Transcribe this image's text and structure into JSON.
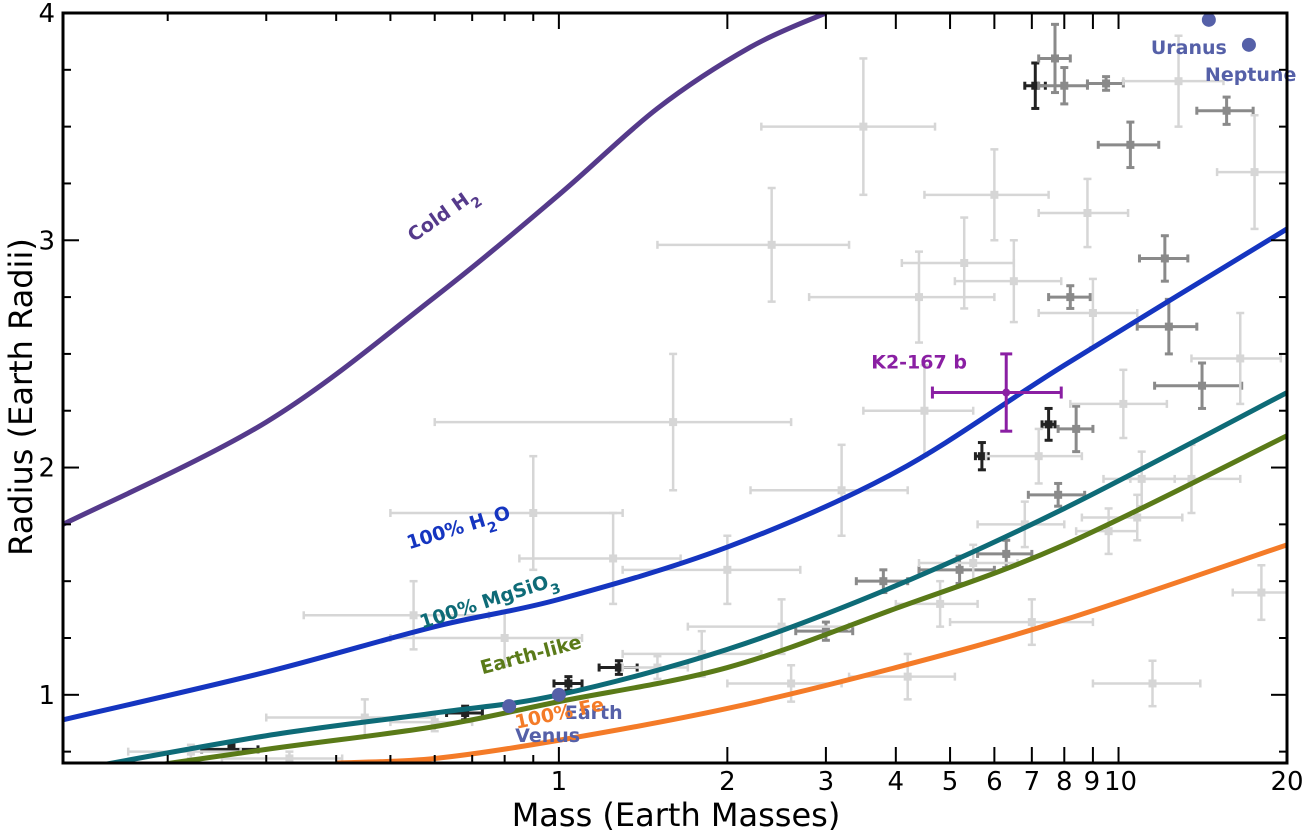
{
  "chart_data": {
    "type": "scatter",
    "title": "",
    "xlabel": "Mass (Earth Masses)",
    "ylabel": "Radius (Earth Radii)",
    "xscale": "log",
    "xlim": [
      0.13,
      20
    ],
    "ylim": [
      0.7,
      4
    ],
    "x_ticks": [
      {
        "value": 1,
        "label": "1"
      },
      {
        "value": 2,
        "label": "2"
      },
      {
        "value": 3,
        "label": "3"
      },
      {
        "value": 4,
        "label": "4"
      },
      {
        "value": 5,
        "label": "5"
      },
      {
        "value": 6,
        "label": "6"
      },
      {
        "value": 7,
        "label": "7"
      },
      {
        "value": 8,
        "label": "8"
      },
      {
        "value": 9,
        "label": "9"
      },
      {
        "value": 10,
        "label": "10"
      },
      {
        "value": 20,
        "label": "20"
      }
    ],
    "y_ticks": [
      {
        "value": 1,
        "label": "1"
      },
      {
        "value": 2,
        "label": "2"
      },
      {
        "value": 3,
        "label": "3"
      },
      {
        "value": 4,
        "label": "4"
      }
    ],
    "grid": false,
    "composition_curves": [
      {
        "label": "Cold H",
        "sub": "2",
        "color": "#553a8b",
        "points": [
          [
            0.13,
            1.75
          ],
          [
            0.3,
            2.2
          ],
          [
            0.6,
            2.75
          ],
          [
            1.0,
            3.2
          ],
          [
            1.5,
            3.58
          ],
          [
            2.2,
            3.85
          ],
          [
            3.0,
            4.0
          ]
        ]
      },
      {
        "label": "100% H",
        "sub": "2",
        "suffix": "O",
        "color": "#1535c0",
        "points": [
          [
            0.13,
            0.89
          ],
          [
            0.3,
            1.1
          ],
          [
            0.6,
            1.3
          ],
          [
            1.0,
            1.42
          ],
          [
            2.0,
            1.65
          ],
          [
            4.0,
            1.98
          ],
          [
            8.0,
            2.45
          ],
          [
            20,
            3.05
          ]
        ]
      },
      {
        "label": "100% MgSiO",
        "sub": "3",
        "suffix": "",
        "color": "#0e6b77",
        "points": [
          [
            0.13,
            0.66
          ],
          [
            0.3,
            0.82
          ],
          [
            0.6,
            0.92
          ],
          [
            1.0,
            1.0
          ],
          [
            2.0,
            1.2
          ],
          [
            4.0,
            1.48
          ],
          [
            8.0,
            1.82
          ],
          [
            20,
            2.33
          ]
        ]
      },
      {
        "label": "Earth-like",
        "color": "#5a7a18",
        "points": [
          [
            0.13,
            0.63
          ],
          [
            0.3,
            0.76
          ],
          [
            0.6,
            0.86
          ],
          [
            1.0,
            0.97
          ],
          [
            2.0,
            1.12
          ],
          [
            4.0,
            1.38
          ],
          [
            8.0,
            1.66
          ],
          [
            20,
            2.14
          ]
        ]
      },
      {
        "label": "100% Fe",
        "color": "#f47b28",
        "points": [
          [
            0.4,
            0.7
          ],
          [
            0.6,
            0.72
          ],
          [
            1.0,
            0.8
          ],
          [
            2.0,
            0.94
          ],
          [
            4.0,
            1.12
          ],
          [
            8.0,
            1.33
          ],
          [
            20,
            1.66
          ]
        ]
      }
    ],
    "solar_system": [
      {
        "name": "Venus",
        "mass": 0.815,
        "radius": 0.95
      },
      {
        "name": "Earth",
        "mass": 1.0,
        "radius": 1.0
      },
      {
        "name": "Uranus",
        "mass": 14.5,
        "radius": 3.97
      },
      {
        "name": "Neptune",
        "mass": 17.1,
        "radius": 3.86
      }
    ],
    "highlight": {
      "name": "K2-167 b",
      "mass": 6.3,
      "mass_err": [
        1.65,
        1.6
      ],
      "radius": 2.33,
      "radius_err": [
        0.17,
        0.17
      ],
      "color": "#8a1fa3"
    },
    "known_planets": [
      {
        "mass": 7.1,
        "merr": 0.3,
        "radius": 3.68,
        "rerr": 0.1,
        "shade": "dark"
      },
      {
        "mass": 5.7,
        "merr": 0.15,
        "radius": 2.05,
        "rerr": 0.06,
        "shade": "dark"
      },
      {
        "mass": 7.5,
        "merr": 0.2,
        "radius": 2.19,
        "rerr": 0.07,
        "shade": "dark"
      },
      {
        "mass": 1.28,
        "merr": 0.1,
        "radius": 1.12,
        "rerr": 0.03,
        "shade": "dark"
      },
      {
        "mass": 1.04,
        "merr": 0.06,
        "radius": 1.05,
        "rerr": 0.03,
        "shade": "dark"
      },
      {
        "mass": 0.68,
        "merr": 0.05,
        "radius": 0.92,
        "rerr": 0.03,
        "shade": "dark"
      },
      {
        "mass": 0.26,
        "merr": 0.03,
        "radius": 0.76,
        "rerr": 0.02,
        "shade": "dark"
      },
      {
        "mass": 8.2,
        "merr": 0.7,
        "radius": 2.75,
        "rerr": 0.05,
        "shade": "mid"
      },
      {
        "mass": 8.0,
        "merr": 0.8,
        "radius": 3.68,
        "rerr": 0.08,
        "shade": "mid"
      },
      {
        "mass": 7.7,
        "merr": 0.5,
        "radius": 3.8,
        "rerr": 0.15,
        "shade": "mid"
      },
      {
        "mass": 9.5,
        "merr": 0.7,
        "radius": 3.69,
        "rerr": 0.03,
        "shade": "mid"
      },
      {
        "mass": 10.5,
        "merr": 1.3,
        "radius": 3.42,
        "rerr": 0.1,
        "shade": "mid"
      },
      {
        "mass": 12.1,
        "merr": 1.2,
        "radius": 2.92,
        "rerr": 0.1,
        "shade": "mid"
      },
      {
        "mass": 12.3,
        "merr": 1.5,
        "radius": 2.62,
        "rerr": 0.12,
        "shade": "mid"
      },
      {
        "mass": 15.6,
        "merr": 1.8,
        "radius": 3.57,
        "rerr": 0.06,
        "shade": "mid"
      },
      {
        "mass": 7.8,
        "merr": 0.9,
        "radius": 1.88,
        "rerr": 0.05,
        "shade": "mid"
      },
      {
        "mass": 3.8,
        "merr": 0.4,
        "radius": 1.5,
        "rerr": 0.05,
        "shade": "mid"
      },
      {
        "mass": 5.2,
        "merr": 0.8,
        "radius": 1.55,
        "rerr": 0.06,
        "shade": "mid"
      },
      {
        "mass": 6.3,
        "merr": 0.7,
        "radius": 1.62,
        "rerr": 0.06,
        "shade": "mid"
      },
      {
        "mass": 3.0,
        "merr": 0.35,
        "radius": 1.28,
        "rerr": 0.04,
        "shade": "mid"
      },
      {
        "mass": 8.4,
        "merr": 0.6,
        "radius": 2.17,
        "rerr": 0.1,
        "shade": "mid"
      },
      {
        "mass": 14.1,
        "merr": 2.5,
        "radius": 2.36,
        "rerr": 0.1,
        "shade": "mid"
      },
      {
        "mass": 5.3,
        "merr": 1.2,
        "radius": 2.9,
        "rerr": 0.2,
        "shade": "light"
      },
      {
        "mass": 6.5,
        "merr": 1.4,
        "radius": 2.82,
        "rerr": 0.18,
        "shade": "light"
      },
      {
        "mass": 4.4,
        "merr": 1.6,
        "radius": 2.75,
        "rerr": 0.2,
        "shade": "light"
      },
      {
        "mass": 3.5,
        "merr": 1.2,
        "radius": 3.5,
        "rerr": 0.3,
        "shade": "light"
      },
      {
        "mass": 2.4,
        "merr": 0.9,
        "radius": 2.98,
        "rerr": 0.25,
        "shade": "light"
      },
      {
        "mass": 1.6,
        "merr": 1.0,
        "radius": 2.2,
        "rerr": 0.3,
        "shade": "light"
      },
      {
        "mass": 4.5,
        "merr": 1.0,
        "radius": 2.25,
        "rerr": 0.2,
        "shade": "light"
      },
      {
        "mass": 9.0,
        "merr": 1.8,
        "radius": 2.68,
        "rerr": 0.15,
        "shade": "light"
      },
      {
        "mass": 10.2,
        "merr": 2.0,
        "radius": 2.28,
        "rerr": 0.15,
        "shade": "light"
      },
      {
        "mass": 11.0,
        "merr": 1.6,
        "radius": 1.95,
        "rerr": 0.12,
        "shade": "light"
      },
      {
        "mass": 9.6,
        "merr": 1.2,
        "radius": 1.72,
        "rerr": 0.1,
        "shade": "light"
      },
      {
        "mass": 4.8,
        "merr": 0.8,
        "radius": 1.4,
        "rerr": 0.1,
        "shade": "light"
      },
      {
        "mass": 2.5,
        "merr": 0.8,
        "radius": 1.3,
        "rerr": 0.12,
        "shade": "light"
      },
      {
        "mass": 2.0,
        "merr": 0.7,
        "radius": 1.55,
        "rerr": 0.15,
        "shade": "light"
      },
      {
        "mass": 1.8,
        "merr": 0.5,
        "radius": 1.18,
        "rerr": 0.1,
        "shade": "light"
      },
      {
        "mass": 2.6,
        "merr": 0.6,
        "radius": 1.05,
        "rerr": 0.08,
        "shade": "light"
      },
      {
        "mass": 4.2,
        "merr": 0.9,
        "radius": 1.08,
        "rerr": 0.1,
        "shade": "light"
      },
      {
        "mass": 7.0,
        "merr": 2.0,
        "radius": 1.32,
        "rerr": 0.1,
        "shade": "light"
      },
      {
        "mass": 13.5,
        "merr": 3.0,
        "radius": 1.95,
        "rerr": 0.15,
        "shade": "light"
      },
      {
        "mass": 16.5,
        "merr": 3.0,
        "radius": 2.48,
        "rerr": 0.2,
        "shade": "light"
      },
      {
        "mass": 18.0,
        "merr": 2.0,
        "radius": 1.45,
        "rerr": 0.12,
        "shade": "light"
      },
      {
        "mass": 11.5,
        "merr": 2.5,
        "radius": 1.05,
        "rerr": 0.1,
        "shade": "light"
      },
      {
        "mass": 0.55,
        "merr": 0.2,
        "radius": 1.35,
        "rerr": 0.15,
        "shade": "light"
      },
      {
        "mass": 0.8,
        "merr": 0.3,
        "radius": 1.25,
        "rerr": 0.12,
        "shade": "light"
      },
      {
        "mass": 0.45,
        "merr": 0.15,
        "radius": 0.9,
        "rerr": 0.08,
        "shade": "light"
      },
      {
        "mass": 1.25,
        "merr": 0.4,
        "radius": 1.6,
        "rerr": 0.2,
        "shade": "light"
      },
      {
        "mass": 0.9,
        "merr": 0.4,
        "radius": 1.8,
        "rerr": 0.25,
        "shade": "light"
      },
      {
        "mass": 3.2,
        "merr": 1.0,
        "radius": 1.9,
        "rerr": 0.2,
        "shade": "light"
      },
      {
        "mass": 6.0,
        "merr": 1.5,
        "radius": 3.2,
        "rerr": 0.2,
        "shade": "light"
      },
      {
        "mass": 8.8,
        "merr": 1.6,
        "radius": 3.12,
        "rerr": 0.15,
        "shade": "light"
      },
      {
        "mass": 12.8,
        "merr": 2.6,
        "radius": 3.7,
        "rerr": 0.2,
        "shade": "light"
      },
      {
        "mass": 17.5,
        "merr": 2.5,
        "radius": 3.3,
        "rerr": 0.25,
        "shade": "light"
      },
      {
        "mass": 0.33,
        "merr": 0.08,
        "radius": 0.72,
        "rerr": 0.03,
        "shade": "light"
      },
      {
        "mass": 0.22,
        "merr": 0.05,
        "radius": 0.75,
        "rerr": 0.03,
        "shade": "light"
      },
      {
        "mass": 0.6,
        "merr": 0.1,
        "radius": 0.88,
        "rerr": 0.04,
        "shade": "light"
      },
      {
        "mass": 1.5,
        "merr": 0.2,
        "radius": 1.12,
        "rerr": 0.05,
        "shade": "light"
      },
      {
        "mass": 5.5,
        "merr": 1.1,
        "radius": 1.58,
        "rerr": 0.08,
        "shade": "light"
      },
      {
        "mass": 6.8,
        "merr": 1.2,
        "radius": 1.75,
        "rerr": 0.1,
        "shade": "light"
      },
      {
        "mass": 7.2,
        "merr": 1.4,
        "radius": 2.05,
        "rerr": 0.12,
        "shade": "light"
      },
      {
        "mass": 10.8,
        "merr": 2.2,
        "radius": 1.78,
        "rerr": 0.1,
        "shade": "light"
      }
    ]
  }
}
